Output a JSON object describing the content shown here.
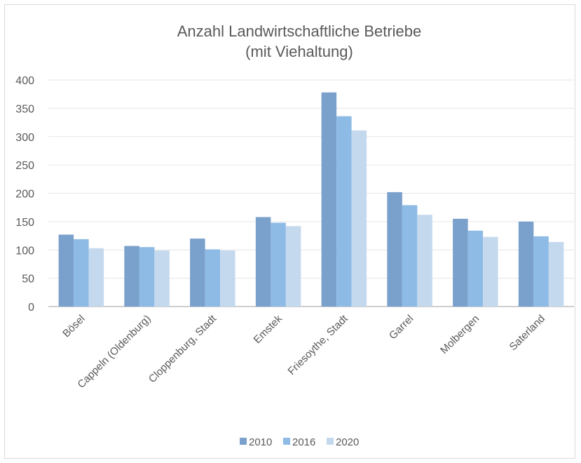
{
  "chart_data": {
    "type": "bar",
    "title": "Anzahl Landwirtschaftliche Betriebe",
    "subtitle": "(mit Viehaltung)",
    "xlabel": "",
    "ylabel": "",
    "ylim": [
      0,
      400
    ],
    "yticks": [
      0,
      50,
      100,
      150,
      200,
      250,
      300,
      350,
      400
    ],
    "grid": true,
    "legend_position": "bottom",
    "categories": [
      "Bösel",
      "Cappeln (Oldenburg)",
      "Cloppenburg, Stadt",
      "Emstek",
      "Friesoythe, Stadt",
      "Garrel",
      "Molbergen",
      "Saterland"
    ],
    "series": [
      {
        "name": "2010",
        "color": "#7aa0cc",
        "values": [
          127,
          107,
          120,
          158,
          378,
          202,
          155,
          150
        ]
      },
      {
        "name": "2016",
        "color": "#8dbbe6",
        "values": [
          119,
          105,
          101,
          148,
          336,
          179,
          134,
          124
        ]
      },
      {
        "name": "2020",
        "color": "#c5d9ee",
        "values": [
          103,
          99,
          99,
          142,
          311,
          162,
          123,
          114
        ]
      }
    ]
  }
}
